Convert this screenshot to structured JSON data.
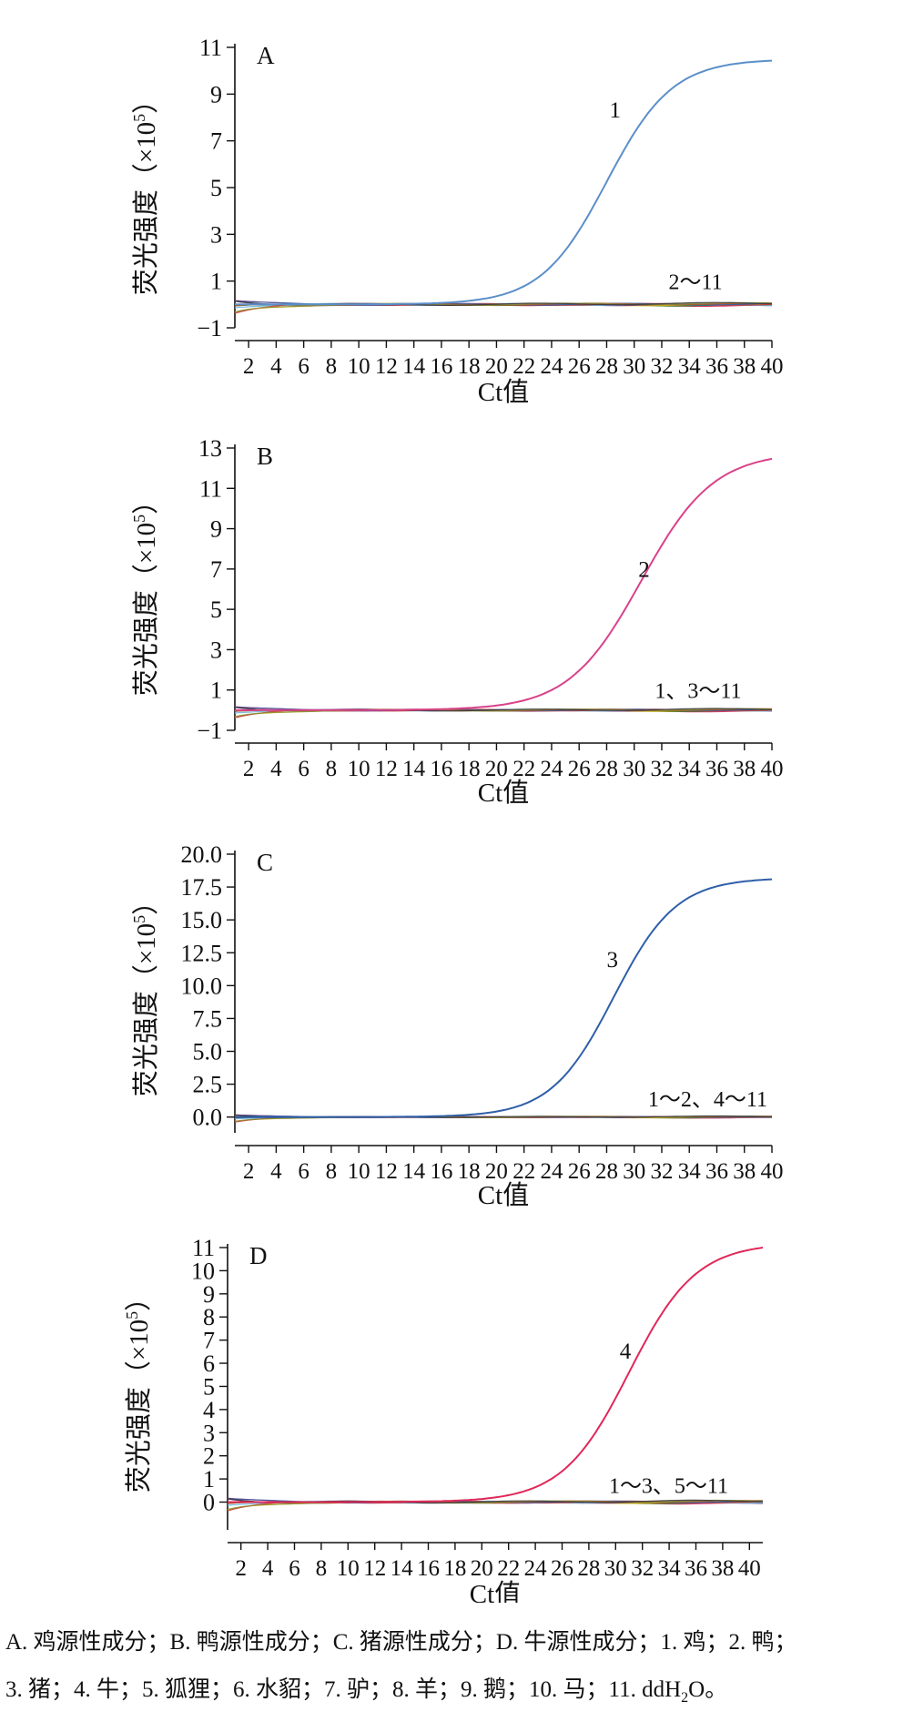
{
  "ylabel_text": "荧光强度（×10",
  "ylabel_exp": "5",
  "ylabel_close": "）",
  "xlabel": "Ct值",
  "caption": {
    "line1": "A. 鸡源性成分；B. 鸭源性成分；C. 猪源性成分；D. 牛源性成分；1. 鸡；2. 鸭；",
    "line2_pre": "3. 猪；4. 牛；5. 狐狸；6. 水貂；7. 驴；8. 羊；9. 鹅；10. 马；11. ddH",
    "line2_sub": "2",
    "line2_post": "O。"
  },
  "chart_data": [
    {
      "type": "line",
      "panel": "A",
      "xticks": [
        2,
        4,
        6,
        8,
        10,
        12,
        14,
        16,
        18,
        20,
        22,
        24,
        26,
        28,
        30,
        32,
        34,
        36,
        38,
        40
      ],
      "xlim": [
        1,
        40
      ],
      "ylim": [
        -1,
        11
      ],
      "yticks": [
        "−1",
        "1",
        "3",
        "5",
        "7",
        "9",
        "11"
      ],
      "ytick_values": [
        -1,
        1,
        3,
        5,
        7,
        9,
        11
      ],
      "positive": {
        "label": "1",
        "color": "#5b8fc9",
        "plateau": 10.5,
        "midpoint": 28,
        "slope": 0.42,
        "label_at": [
          28.2,
          8.0
        ]
      },
      "negative_label": "2～11",
      "negative_label_at": [
        32.5,
        0.65
      ]
    },
    {
      "type": "line",
      "panel": "B",
      "xticks": [
        2,
        4,
        6,
        8,
        10,
        12,
        14,
        16,
        18,
        20,
        22,
        24,
        26,
        28,
        30,
        32,
        34,
        36,
        38,
        40
      ],
      "xlim": [
        1,
        40
      ],
      "ylim": [
        -1,
        13
      ],
      "yticks": [
        "−1",
        "1",
        "3",
        "5",
        "7",
        "9",
        "11",
        "13"
      ],
      "ytick_values": [
        -1,
        1,
        3,
        5,
        7,
        9,
        11,
        13
      ],
      "positive": {
        "label": "2",
        "color": "#d9428a",
        "plateau": 12.8,
        "midpoint": 30.5,
        "slope": 0.38,
        "label_at": [
          30.3,
          6.6
        ]
      },
      "negative_label": "1、3～11",
      "negative_label_at": [
        31.5,
        0.6
      ]
    },
    {
      "type": "line",
      "panel": "C",
      "xticks": [
        2,
        4,
        6,
        8,
        10,
        12,
        14,
        16,
        18,
        20,
        22,
        24,
        26,
        28,
        30,
        32,
        34,
        36,
        38,
        40
      ],
      "xlim": [
        1,
        40
      ],
      "ylim": [
        -1.2,
        20
      ],
      "yticks": [
        "0.0",
        "2.5",
        "5.0",
        "7.5",
        "10.0",
        "12.5",
        "15.0",
        "17.5",
        "20.0"
      ],
      "ytick_values": [
        0,
        2.5,
        5,
        7.5,
        10,
        12.5,
        15,
        17.5,
        20
      ],
      "positive": {
        "label": "3",
        "color": "#2f5fa8",
        "plateau": 18.2,
        "midpoint": 28.5,
        "slope": 0.44,
        "label_at": [
          28.0,
          11.4
        ]
      },
      "negative_label": "1～2、4～11",
      "negative_label_at": [
        31.0,
        0.8
      ]
    },
    {
      "type": "line",
      "panel": "D",
      "xticks": [
        2,
        4,
        6,
        8,
        10,
        12,
        14,
        16,
        18,
        20,
        22,
        24,
        26,
        28,
        30,
        32,
        34,
        36,
        38,
        40
      ],
      "xlim": [
        1,
        41
      ],
      "ylim": [
        -1.2,
        11
      ],
      "yticks": [
        "0",
        "1",
        "2",
        "3",
        "4",
        "5",
        "6",
        "7",
        "8",
        "9",
        "10",
        "11"
      ],
      "ytick_values": [
        0,
        1,
        2,
        3,
        4,
        5,
        6,
        7,
        8,
        9,
        10,
        11
      ],
      "positive": {
        "label": "4",
        "color": "#e0285a",
        "plateau": 11.2,
        "midpoint": 31.0,
        "slope": 0.4,
        "label_at": [
          30.3,
          6.2
        ]
      },
      "negative_label": "1～3、5～11",
      "negative_label_at": [
        29.5,
        0.4
      ]
    }
  ],
  "negative_colors": [
    "#e0285a",
    "#2e7d32",
    "#f2c318",
    "#7a3b8c",
    "#6fb8e0",
    "#c6372e",
    "#2f5fa8",
    "#aa5a26",
    "#8a8f3b",
    "#3a3a3a"
  ]
}
